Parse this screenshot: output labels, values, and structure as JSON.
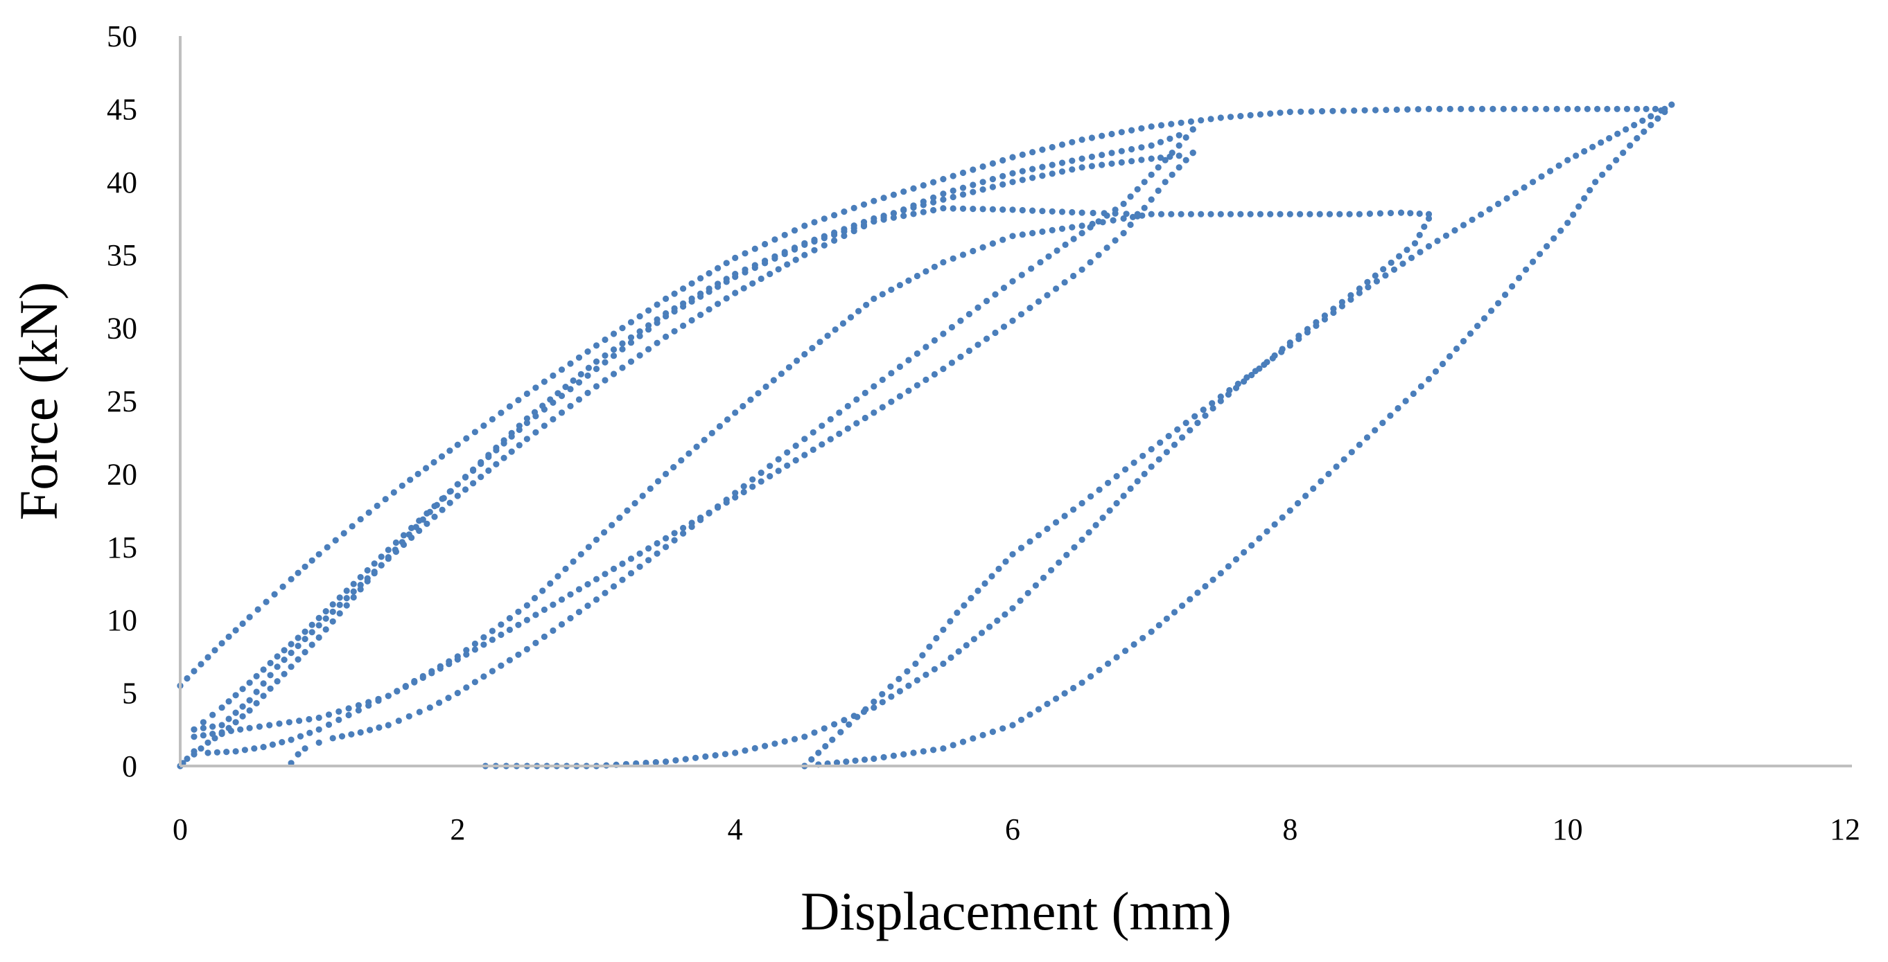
{
  "chart_data": {
    "type": "scatter",
    "title": "",
    "xlabel": "Displacement (mm)",
    "ylabel": "Force (kN)",
    "xlim": [
      0,
      12
    ],
    "ylim": [
      0,
      50
    ],
    "xticks": [
      "0",
      "2",
      "4",
      "6",
      "8",
      "10",
      "12"
    ],
    "yticks": [
      "0",
      "5",
      "10",
      "15",
      "20",
      "25",
      "30",
      "35",
      "40",
      "45",
      "50"
    ],
    "grid": false,
    "legend": "none",
    "marker_color": "#4a7ebb",
    "series": [
      {
        "x": [
          0,
          0.02,
          0.05,
          0.1,
          0.15,
          0.2,
          0.3,
          0.4,
          0.5,
          0.6,
          0.7,
          0.8,
          0.9,
          1.0,
          1.2,
          1.5,
          1.8,
          2.0,
          2.5,
          3.0,
          3.5,
          4.0,
          4.5,
          5.0,
          5.5,
          6.0,
          6.5,
          7.0,
          7.2,
          7.3
        ],
        "y": [
          0,
          0.2,
          0.5,
          0.8,
          1.2,
          1.6,
          2.2,
          3.0,
          3.8,
          4.8,
          5.8,
          6.8,
          7.8,
          8.8,
          11.0,
          14.3,
          17.4,
          19.3,
          23.8,
          27.7,
          31.0,
          33.7,
          35.8,
          37.5,
          38.8,
          40.0,
          41.0,
          41.6,
          41.8,
          42.0
        ]
      },
      {
        "x": [
          7.3,
          7.2,
          7.1,
          7.0,
          6.8,
          6.5,
          6.0,
          5.5,
          5.0,
          4.5,
          4.0,
          3.5,
          3.0,
          2.5,
          2.0,
          1.5,
          1.0,
          0.8,
          0.6,
          0.4,
          0.2,
          0.1
        ],
        "y": [
          42.0,
          41.0,
          40.0,
          38.8,
          36.5,
          34.0,
          30.5,
          27.2,
          24.2,
          21.3,
          18.4,
          15.6,
          12.8,
          10.0,
          7.3,
          4.8,
          2.5,
          1.8,
          1.3,
          1.0,
          0.9,
          1.0
        ]
      },
      {
        "x": [
          0.1,
          0.3,
          0.5,
          0.7,
          0.9,
          1.2,
          1.5,
          2.0,
          2.5,
          3.0,
          3.5,
          4.0,
          4.5,
          5.0,
          5.5,
          6.0,
          6.5,
          7.0,
          7.2,
          7.3
        ],
        "y": [
          2.5,
          2.8,
          4.5,
          6.8,
          8.7,
          11.5,
          14.2,
          18.5,
          22.4,
          26.0,
          29.4,
          32.4,
          35.0,
          37.3,
          39.2,
          40.6,
          41.6,
          42.5,
          43.2,
          43.6
        ]
      },
      {
        "x": [
          7.3,
          7.2,
          7.0,
          6.8,
          6.5,
          6.2,
          6.0,
          5.5,
          5.0,
          4.5,
          4.0,
          3.5,
          3.0,
          2.5,
          2.0,
          1.8,
          1.5,
          1.3,
          1.1,
          1.0,
          0.9,
          0.85,
          0.8
        ],
        "y": [
          43.6,
          42.5,
          40.5,
          38.5,
          36.5,
          34.5,
          33.2,
          29.6,
          26.0,
          22.4,
          18.7,
          15.0,
          11.4,
          8.0,
          5.0,
          4.0,
          2.8,
          2.3,
          1.9,
          1.6,
          1.2,
          0.8,
          0.2
        ]
      },
      {
        "x": [
          0,
          0.1,
          0.3,
          0.5,
          0.8,
          1.0,
          1.3,
          1.6,
          2.0,
          2.5,
          3.0,
          3.5,
          4.0,
          4.5,
          5.0,
          5.5,
          6.0,
          6.5,
          7.0,
          7.5,
          8.0,
          9.0,
          10.0,
          10.5,
          10.7
        ],
        "y": [
          5.5,
          6.5,
          8.4,
          10.2,
          12.8,
          14.5,
          16.9,
          19.2,
          22.0,
          25.5,
          28.8,
          32.0,
          34.8,
          37.0,
          38.7,
          40.2,
          41.7,
          42.9,
          43.8,
          44.4,
          44.8,
          45.0,
          45.0,
          45.0,
          45.0
        ]
      },
      {
        "x": [
          10.7,
          10.5,
          10.2,
          10.0,
          9.7,
          9.5,
          9.0,
          8.5,
          8.0,
          7.5,
          7.0,
          6.5,
          6.0,
          5.5,
          5.0,
          4.8,
          4.6,
          4.5
        ],
        "y": [
          44.8,
          43.0,
          40.0,
          37.2,
          34.0,
          31.7,
          26.5,
          22.0,
          17.5,
          13.2,
          9.2,
          5.7,
          2.8,
          1.2,
          0.5,
          0.3,
          0.1,
          0
        ]
      },
      {
        "x": [
          4.5,
          4.7,
          5.0,
          5.3,
          5.6,
          6.0,
          6.5,
          7.0,
          7.5,
          8.0,
          8.5,
          9.0,
          9.5,
          10.0,
          10.3,
          10.6,
          10.75
        ],
        "y": [
          0,
          1.8,
          4.4,
          7.0,
          10.5,
          14.5,
          18.0,
          21.7,
          25.3,
          28.8,
          32.4,
          35.6,
          38.5,
          41.5,
          43.0,
          44.5,
          45.3
        ]
      },
      {
        "x": [
          2.2,
          2.5,
          3.0,
          3.5,
          4.0,
          4.5,
          5.0,
          5.5,
          6.0,
          6.5,
          7.0,
          7.5,
          8.0,
          8.5,
          8.9,
          9.0
        ],
        "y": [
          0,
          0,
          0,
          0.3,
          0.9,
          2.0,
          4.0,
          7.0,
          10.8,
          15.5,
          20.5,
          25.0,
          29.0,
          32.7,
          35.8,
          37.5
        ]
      },
      {
        "x": [
          9.0,
          8.8,
          8.5,
          8.0,
          7.5,
          7.0,
          6.8,
          6.5,
          6.0,
          5.5,
          5.0,
          4.5,
          4.0,
          3.5,
          3.0,
          2.5,
          2.0,
          1.5,
          1.0,
          0.5,
          0.3,
          0.1
        ],
        "y": [
          37.8,
          37.9,
          37.8,
          37.8,
          37.8,
          37.8,
          37.5,
          37.0,
          36.3,
          34.5,
          32.0,
          28.2,
          24.2,
          20.0,
          15.5,
          11.0,
          7.5,
          4.8,
          3.3,
          2.6,
          2.3,
          2.0
        ]
      },
      {
        "x": [
          0.1,
          0.3,
          0.5,
          0.7,
          0.9,
          1.2,
          1.5,
          2.0,
          2.5,
          3.0,
          3.5,
          4.0,
          4.5,
          5.0,
          5.5,
          6.0,
          6.5,
          6.9
        ],
        "y": [
          2.5,
          4.0,
          5.7,
          7.5,
          9.2,
          12.0,
          14.8,
          19.3,
          23.5,
          27.2,
          30.8,
          33.5,
          35.7,
          37.3,
          38.2,
          38.1,
          37.9,
          37.8
        ]
      }
    ]
  }
}
